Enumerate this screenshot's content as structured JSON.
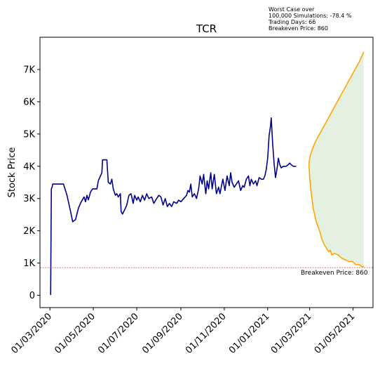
{
  "chart_data": {
    "type": "line",
    "title": "TCR",
    "xlabel": "",
    "ylabel": "Stock Price",
    "x_ticks": [
      "01/03/2020",
      "01/05/2020",
      "01/07/2020",
      "01/09/2020",
      "01/11/2020",
      "01/01/2021",
      "01/03/2021",
      "01/05/2021"
    ],
    "y_ticks": [
      "0",
      "1K",
      "2K",
      "3K",
      "4K",
      "5K",
      "6K",
      "7K"
    ],
    "xlim": [
      "2020-02-16",
      "2021-05-29"
    ],
    "ylim": [
      -380,
      8000
    ],
    "grid": false,
    "annotation_lines": [
      "Worst Case over",
      "100,000 Simulations: -78.4 %",
      "Trading Days: 66",
      "Breakeven Price: 860"
    ],
    "breakeven": {
      "value": 860,
      "label": "Breakeven Price: 860",
      "color": "#ff0000"
    },
    "series": [
      {
        "color": "#00008b",
        "points": [
          [
            "2020-03-02",
            10
          ],
          [
            "2020-03-03",
            3300
          ],
          [
            "2020-03-04",
            3350
          ],
          [
            "2020-03-05",
            3450
          ],
          [
            "2020-03-10",
            3450
          ],
          [
            "2020-03-20",
            3450
          ],
          [
            "2020-03-25",
            3100
          ],
          [
            "2020-03-30",
            2600
          ],
          [
            "2020-04-02",
            2280
          ],
          [
            "2020-04-06",
            2350
          ],
          [
            "2020-04-10",
            2700
          ],
          [
            "2020-04-14",
            2900
          ],
          [
            "2020-04-18",
            3050
          ],
          [
            "2020-04-20",
            2900
          ],
          [
            "2020-04-22",
            3100
          ],
          [
            "2020-04-24",
            2960
          ],
          [
            "2020-04-27",
            3200
          ],
          [
            "2020-04-30",
            3300
          ],
          [
            "2020-05-06",
            3300
          ],
          [
            "2020-05-08",
            3550
          ],
          [
            "2020-05-11",
            3700
          ],
          [
            "2020-05-13",
            3800
          ],
          [
            "2020-05-14",
            4200
          ],
          [
            "2020-05-20",
            4200
          ],
          [
            "2020-05-22",
            3500
          ],
          [
            "2020-05-25",
            3450
          ],
          [
            "2020-05-27",
            3600
          ],
          [
            "2020-05-29",
            3300
          ],
          [
            "2020-06-01",
            3100
          ],
          [
            "2020-06-03",
            3150
          ],
          [
            "2020-06-05",
            3050
          ],
          [
            "2020-06-08",
            3150
          ],
          [
            "2020-06-09",
            2600
          ],
          [
            "2020-06-11",
            2520
          ],
          [
            "2020-06-14",
            2650
          ],
          [
            "2020-06-17",
            2800
          ],
          [
            "2020-06-20",
            3100
          ],
          [
            "2020-06-23",
            3150
          ],
          [
            "2020-06-26",
            2850
          ],
          [
            "2020-06-28",
            3100
          ],
          [
            "2020-07-01",
            2950
          ],
          [
            "2020-07-03",
            3050
          ],
          [
            "2020-07-06",
            2900
          ],
          [
            "2020-07-09",
            3100
          ],
          [
            "2020-07-12",
            2950
          ],
          [
            "2020-07-15",
            3150
          ],
          [
            "2020-07-18",
            3000
          ],
          [
            "2020-07-22",
            3050
          ],
          [
            "2020-07-25",
            2850
          ],
          [
            "2020-07-29",
            3000
          ],
          [
            "2020-08-01",
            3100
          ],
          [
            "2020-08-04",
            3050
          ],
          [
            "2020-08-07",
            2800
          ],
          [
            "2020-08-10",
            3000
          ],
          [
            "2020-08-13",
            2750
          ],
          [
            "2020-08-16",
            2850
          ],
          [
            "2020-08-19",
            2750
          ],
          [
            "2020-08-22",
            2900
          ],
          [
            "2020-08-26",
            2850
          ],
          [
            "2020-08-29",
            2950
          ],
          [
            "2020-09-01",
            2900
          ],
          [
            "2020-09-05",
            3000
          ],
          [
            "2020-09-09",
            3100
          ],
          [
            "2020-09-11",
            3250
          ],
          [
            "2020-09-13",
            3200
          ],
          [
            "2020-09-15",
            3450
          ],
          [
            "2020-09-17",
            3050
          ],
          [
            "2020-09-20",
            3150
          ],
          [
            "2020-09-23",
            3000
          ],
          [
            "2020-09-26",
            3300
          ],
          [
            "2020-09-28",
            3700
          ],
          [
            "2020-10-01",
            3450
          ],
          [
            "2020-10-03",
            3750
          ],
          [
            "2020-10-06",
            3150
          ],
          [
            "2020-10-08",
            3550
          ],
          [
            "2020-10-10",
            3300
          ],
          [
            "2020-10-13",
            3800
          ],
          [
            "2020-10-15",
            3300
          ],
          [
            "2020-10-18",
            3750
          ],
          [
            "2020-10-21",
            3150
          ],
          [
            "2020-10-24",
            3350
          ],
          [
            "2020-10-26",
            3150
          ],
          [
            "2020-10-30",
            3600
          ],
          [
            "2020-11-02",
            3250
          ],
          [
            "2020-11-05",
            3700
          ],
          [
            "2020-11-08",
            3400
          ],
          [
            "2020-11-10",
            3800
          ],
          [
            "2020-11-12",
            3500
          ],
          [
            "2020-11-15",
            3350
          ],
          [
            "2020-11-18",
            3450
          ],
          [
            "2020-11-21",
            3550
          ],
          [
            "2020-11-24",
            3250
          ],
          [
            "2020-11-27",
            3400
          ],
          [
            "2020-11-29",
            3350
          ],
          [
            "2020-12-02",
            3600
          ],
          [
            "2020-12-05",
            3700
          ],
          [
            "2020-12-07",
            3400
          ],
          [
            "2020-12-09",
            3600
          ],
          [
            "2020-12-12",
            3450
          ],
          [
            "2020-12-15",
            3550
          ],
          [
            "2020-12-17",
            3400
          ],
          [
            "2020-12-20",
            3650
          ],
          [
            "2020-12-23",
            3600
          ],
          [
            "2020-12-26",
            3600
          ],
          [
            "2020-12-28",
            3700
          ],
          [
            "2020-12-30",
            3900
          ],
          [
            "2021-01-01",
            4250
          ],
          [
            "2021-01-03",
            4950
          ],
          [
            "2021-01-05",
            5250
          ],
          [
            "2021-01-06",
            5500
          ],
          [
            "2021-01-08",
            4700
          ],
          [
            "2021-01-10",
            4100
          ],
          [
            "2021-01-12",
            3650
          ],
          [
            "2021-01-14",
            3900
          ],
          [
            "2021-01-16",
            4250
          ],
          [
            "2021-01-18",
            4050
          ],
          [
            "2021-01-20",
            3950
          ],
          [
            "2021-01-23",
            4000
          ],
          [
            "2021-01-27",
            4000
          ],
          [
            "2021-01-30",
            4050
          ],
          [
            "2021-02-01",
            4100
          ],
          [
            "2021-02-03",
            4050
          ],
          [
            "2021-02-06",
            4000
          ],
          [
            "2021-02-10",
            4000
          ]
        ]
      },
      {
        "color": "#ffa500",
        "points": [
          [
            "2021-02-28",
            4100
          ],
          [
            "2021-03-02",
            4350
          ],
          [
            "2021-03-05",
            4550
          ],
          [
            "2021-03-10",
            4800
          ],
          [
            "2021-03-15",
            5000
          ],
          [
            "2021-03-20",
            5200
          ],
          [
            "2021-03-25",
            5400
          ],
          [
            "2021-03-30",
            5600
          ],
          [
            "2021-04-05",
            5850
          ],
          [
            "2021-04-10",
            6050
          ],
          [
            "2021-04-15",
            6250
          ],
          [
            "2021-04-20",
            6450
          ],
          [
            "2021-04-25",
            6650
          ],
          [
            "2021-04-30",
            6850
          ],
          [
            "2021-05-05",
            7050
          ],
          [
            "2021-05-10",
            7250
          ],
          [
            "2021-05-14",
            7450
          ],
          [
            "2021-05-16",
            7550
          ]
        ]
      },
      {
        "color": "#ffa500",
        "points": [
          [
            "2021-02-28",
            4100
          ],
          [
            "2021-03-01",
            3650
          ],
          [
            "2021-03-03",
            3200
          ],
          [
            "2021-03-06",
            2700
          ],
          [
            "2021-03-10",
            2300
          ],
          [
            "2021-03-15",
            2000
          ],
          [
            "2021-03-18",
            1750
          ],
          [
            "2021-03-22",
            1550
          ],
          [
            "2021-03-25",
            1450
          ],
          [
            "2021-03-28",
            1350
          ],
          [
            "2021-03-30",
            1400
          ],
          [
            "2021-04-01",
            1250
          ],
          [
            "2021-04-05",
            1300
          ],
          [
            "2021-04-10",
            1250
          ],
          [
            "2021-04-15",
            1150
          ],
          [
            "2021-04-20",
            1100
          ],
          [
            "2021-04-25",
            1050
          ],
          [
            "2021-04-30",
            1050
          ],
          [
            "2021-05-05",
            950
          ],
          [
            "2021-05-10",
            950
          ],
          [
            "2021-05-14",
            880
          ],
          [
            "2021-05-16",
            900
          ]
        ]
      }
    ],
    "fill_between": {
      "color": "#e5f1e0"
    }
  }
}
